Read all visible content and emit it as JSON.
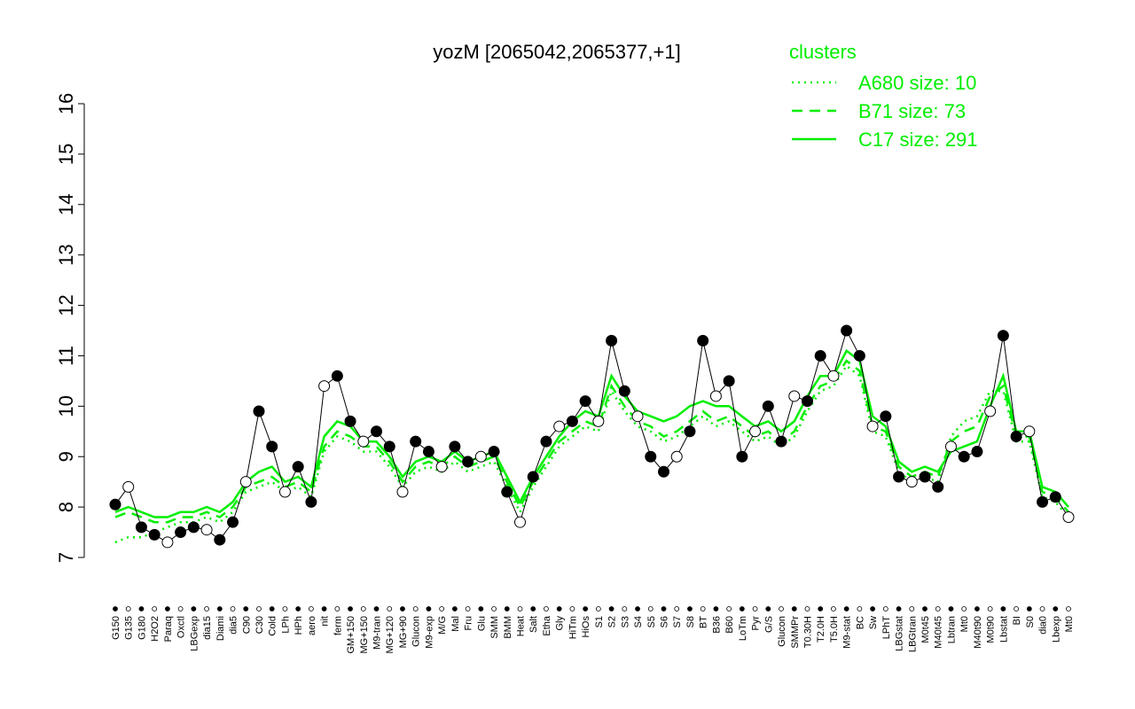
{
  "chart_data": {
    "type": "line",
    "title": "yozM [2065042,2065377,+1]",
    "legend_title": "clusters",
    "legend_position": "top-right",
    "ylim": [
      7,
      16
    ],
    "yticks": [
      7,
      8,
      9,
      10,
      11,
      12,
      13,
      14,
      15,
      16
    ],
    "categories": [
      "G150",
      "G135",
      "G180",
      "H2O2",
      "Paraq",
      "Oxctl",
      "LBGexp",
      "dia15",
      "Diami",
      "dia5",
      "C90",
      "C30",
      "Cold",
      "LPh",
      "HPh",
      "aero",
      "nit",
      "ferm",
      "GM+150",
      "MG+150",
      "M9-tran",
      "MG+120",
      "MG+90",
      "Glucon",
      "M9-exp",
      "M/G",
      "Mal",
      "Fru",
      "Glu",
      "SMM",
      "BMM",
      "Heat",
      "Salt",
      "Etha",
      "Gly",
      "HiTm",
      "HiOs",
      "S1",
      "S2",
      "S3",
      "S4",
      "S5",
      "S6",
      "S7",
      "S8",
      "BT",
      "B36",
      "B60",
      "LoTm",
      "Pyr",
      "G/S",
      "Glucon",
      "SMMPr",
      "T0.30H",
      "T2.0H",
      "T5.0H",
      "M9-stat",
      "BC",
      "Sw",
      "LPhT",
      "LBGstat",
      "LBGtran",
      "M0t45",
      "M40t45",
      "Lbtran",
      "Mt0",
      "M40t90",
      "M0t90",
      "Lbstat",
      "BI",
      "S0",
      "dia0",
      "Lbexp",
      "Mt0"
    ],
    "values": [
      8.05,
      8.4,
      7.6,
      7.45,
      7.3,
      7.5,
      7.6,
      7.55,
      7.35,
      7.7,
      8.5,
      9.9,
      9.2,
      8.3,
      8.8,
      8.1,
      10.4,
      10.6,
      9.7,
      9.3,
      9.5,
      9.2,
      8.3,
      9.3,
      9.1,
      8.8,
      9.2,
      8.9,
      9.0,
      9.1,
      8.3,
      7.7,
      8.6,
      9.3,
      9.6,
      9.7,
      10.1,
      9.7,
      11.3,
      10.3,
      9.8,
      9.0,
      8.7,
      9.0,
      9.5,
      11.3,
      10.2,
      10.5,
      9.0,
      9.5,
      10.0,
      9.3,
      10.2,
      10.1,
      11.0,
      10.6,
      11.5,
      11.0,
      9.6,
      9.8,
      8.6,
      8.5,
      8.6,
      8.4,
      9.2,
      9.0,
      9.1,
      9.9,
      11.4,
      9.4,
      9.5,
      8.1,
      8.2,
      7.8
    ],
    "color": "#000000",
    "series": [
      {
        "name": "A680 size: 10",
        "color": "#00ee00",
        "dash": "dotted",
        "values": [
          7.3,
          7.4,
          7.4,
          7.5,
          7.6,
          7.7,
          7.7,
          7.8,
          7.7,
          7.9,
          8.3,
          8.4,
          8.5,
          8.3,
          8.4,
          8.2,
          9.1,
          9.4,
          9.3,
          9.1,
          9.1,
          8.8,
          8.4,
          8.7,
          8.8,
          8.7,
          8.9,
          8.7,
          8.8,
          8.9,
          8.4,
          7.9,
          8.4,
          8.8,
          9.2,
          9.4,
          9.6,
          9.5,
          10.3,
          9.9,
          9.6,
          9.5,
          9.3,
          9.4,
          9.6,
          9.8,
          9.6,
          9.7,
          9.5,
          9.3,
          9.4,
          9.2,
          9.4,
          9.9,
          10.3,
          10.4,
          10.8,
          10.6,
          9.5,
          9.4,
          8.7,
          8.5,
          8.6,
          8.5,
          9.4,
          9.7,
          9.8,
          10.3,
          10.3,
          9.3,
          9.3,
          8.2,
          8.1,
          7.8
        ]
      },
      {
        "name": "B71 size: 73",
        "color": "#00ee00",
        "dash": "dashed",
        "values": [
          7.8,
          7.9,
          7.8,
          7.7,
          7.7,
          7.8,
          7.8,
          7.9,
          7.8,
          8.0,
          8.4,
          8.5,
          8.6,
          8.4,
          8.5,
          8.3,
          9.2,
          9.5,
          9.4,
          9.2,
          9.2,
          8.9,
          8.5,
          8.8,
          8.9,
          8.8,
          9.0,
          8.8,
          8.9,
          9.0,
          8.5,
          8.0,
          8.5,
          8.9,
          9.3,
          9.5,
          9.7,
          9.6,
          10.4,
          10.0,
          9.7,
          9.6,
          9.4,
          9.5,
          9.7,
          9.9,
          9.7,
          9.8,
          9.6,
          9.4,
          9.5,
          9.3,
          9.5,
          10.0,
          10.4,
          10.5,
          10.9,
          10.7,
          9.6,
          9.5,
          8.8,
          8.6,
          8.7,
          8.6,
          9.3,
          9.5,
          9.6,
          10.2,
          10.4,
          9.4,
          9.4,
          8.3,
          8.2,
          7.9
        ]
      },
      {
        "name": "C17 size: 291",
        "color": "#00ee00",
        "dash": "solid",
        "values": [
          7.9,
          8.0,
          7.9,
          7.8,
          7.8,
          7.9,
          7.9,
          8.0,
          7.9,
          8.1,
          8.5,
          8.7,
          8.8,
          8.5,
          8.6,
          8.4,
          9.4,
          9.7,
          9.6,
          9.3,
          9.3,
          9.0,
          8.6,
          8.9,
          9.0,
          8.9,
          9.1,
          8.9,
          9.0,
          9.1,
          8.6,
          8.1,
          8.6,
          9.0,
          9.4,
          9.7,
          9.9,
          9.8,
          10.6,
          10.2,
          9.9,
          9.8,
          9.7,
          9.8,
          10.0,
          10.1,
          10.0,
          10.0,
          9.8,
          9.6,
          9.7,
          9.5,
          9.7,
          10.2,
          10.6,
          10.6,
          11.1,
          10.9,
          9.8,
          9.6,
          8.9,
          8.7,
          8.8,
          8.7,
          9.1,
          9.2,
          9.3,
          10.0,
          10.6,
          9.5,
          9.5,
          8.4,
          8.3,
          8.0
        ]
      }
    ]
  }
}
